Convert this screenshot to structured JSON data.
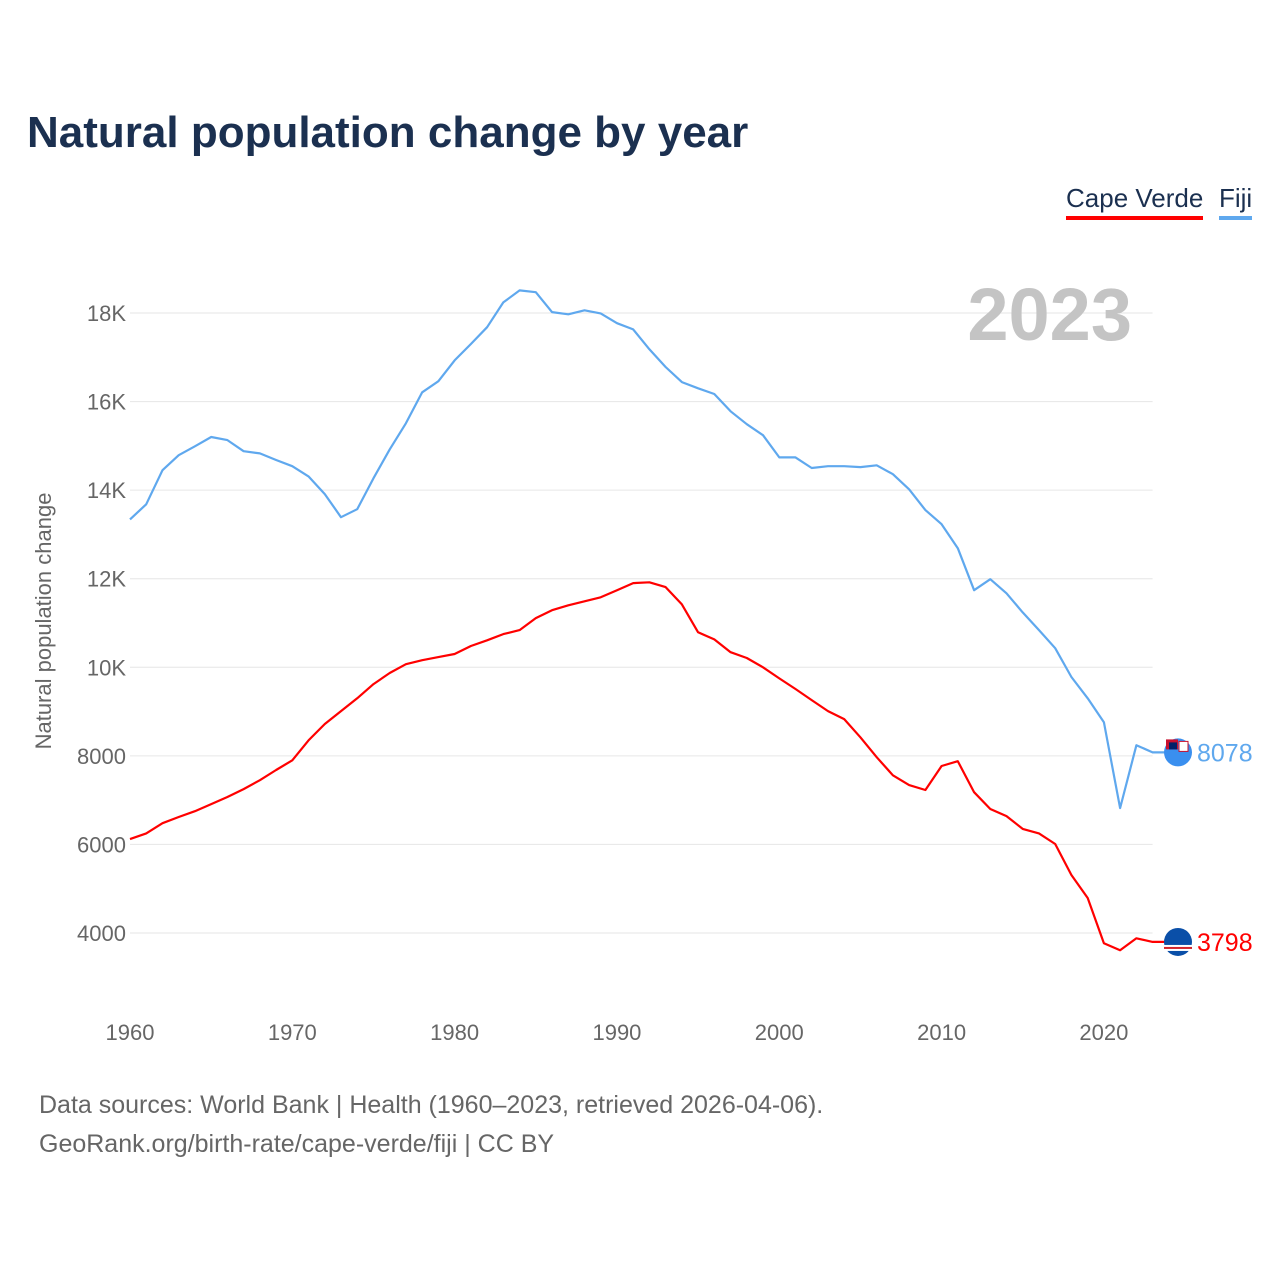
{
  "title": "Natural population change by year",
  "footer": {
    "line1": "Data sources: World Bank | Health (1960–2023, retrieved 2026-04-06).",
    "line2": "GeoRank.org/birth-rate/cape-verde/fiji | CC BY"
  },
  "chart_data": {
    "type": "line",
    "title": "Natural population change by year",
    "xlabel": "",
    "ylabel": "Natural population change",
    "year_watermark": "2023",
    "xlim": [
      1960,
      2023
    ],
    "ylim": [
      4000,
      18000
    ],
    "x_ticks": [
      1960,
      1970,
      1980,
      1990,
      2000,
      2010,
      2020
    ],
    "y_ticks": [
      {
        "v": 4000,
        "label": "4000"
      },
      {
        "v": 6000,
        "label": "6000"
      },
      {
        "v": 8000,
        "label": "8000"
      },
      {
        "v": 10000,
        "label": "10K"
      },
      {
        "v": 12000,
        "label": "12K"
      },
      {
        "v": 14000,
        "label": "14K"
      },
      {
        "v": 16000,
        "label": "16K"
      },
      {
        "v": 18000,
        "label": "18K"
      }
    ],
    "grid": true,
    "legend_position": "top-right",
    "x_start": 1960,
    "series": [
      {
        "name": "Cape Verde",
        "color": "#ff0000",
        "flag": "cape-verde-flag",
        "end_label": "3798",
        "values": [
          6120,
          6250,
          6480,
          6620,
          6750,
          6910,
          7070,
          7250,
          7450,
          7680,
          7900,
          8350,
          8720,
          9010,
          9300,
          9620,
          9870,
          10070,
          10160,
          10230,
          10300,
          10480,
          10610,
          10750,
          10840,
          11110,
          11290,
          11400,
          11490,
          11580,
          11740,
          11900,
          11920,
          11810,
          11420,
          10790,
          10630,
          10340,
          10210,
          10000,
          9750,
          9510,
          9260,
          9010,
          8830,
          8420,
          7970,
          7560,
          7340,
          7230,
          7770,
          7880,
          7180,
          6800,
          6640,
          6350,
          6250,
          6010,
          5310,
          4790,
          3770,
          3610,
          3880,
          3798
        ]
      },
      {
        "name": "Fiji",
        "color": "#5fa8ee",
        "flag": "fiji-flag",
        "end_label": "8078",
        "values": [
          13340,
          13680,
          14450,
          14790,
          14990,
          15200,
          15130,
          14880,
          14830,
          14680,
          14540,
          14310,
          13910,
          13390,
          13570,
          14270,
          14920,
          15510,
          16210,
          16460,
          16930,
          17300,
          17680,
          18240,
          18510,
          18470,
          18020,
          17970,
          18060,
          17990,
          17770,
          17630,
          17180,
          16780,
          16440,
          16300,
          16170,
          15780,
          15490,
          15240,
          14740,
          14740,
          14500,
          14540,
          14540,
          14520,
          14560,
          14360,
          14020,
          13550,
          13230,
          12690,
          11740,
          11990,
          11670,
          11240,
          10840,
          10430,
          9780,
          9300,
          8760,
          6820,
          8240,
          8078
        ]
      }
    ]
  }
}
